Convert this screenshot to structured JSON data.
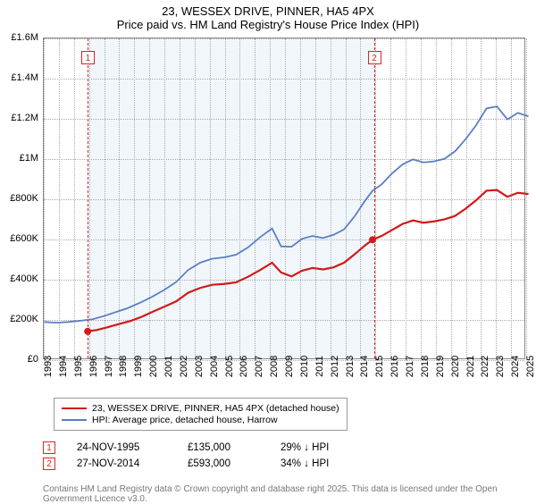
{
  "title_main": "23, WESSEX DRIVE, PINNER, HA5 4PX",
  "title_sub": "Price paid vs. HM Land Registry's House Price Index (HPI)",
  "title_fontsize": 13,
  "background_color": "#ffffff",
  "grid_color": "#aaaaaa",
  "border_color": "#888888",
  "shade_color": "rgba(200,220,240,0.25)",
  "marker_color": "#e02222",
  "xaxis": {
    "min_year": 1993,
    "max_year": 2025,
    "ticks": [
      1993,
      1994,
      1995,
      1996,
      1997,
      1998,
      1999,
      2000,
      2001,
      2002,
      2003,
      2004,
      2005,
      2006,
      2007,
      2008,
      2009,
      2010,
      2011,
      2012,
      2013,
      2014,
      2015,
      2016,
      2017,
      2018,
      2019,
      2020,
      2021,
      2022,
      2023,
      2024,
      2025
    ],
    "rotation_deg": -90,
    "fontsize": 11
  },
  "yaxis": {
    "min": 0,
    "max": 1600000,
    "step": 200000,
    "ticks": [
      0,
      200000,
      400000,
      600000,
      800000,
      1000000,
      1200000,
      1400000,
      1600000
    ],
    "tick_labels": [
      "£0",
      "£200K",
      "£400K",
      "£600K",
      "£800K",
      "£1M",
      "£1.2M",
      "£1.4M",
      "£1.6M"
    ],
    "fontsize": 11
  },
  "shaded_range": {
    "from": 1995.9,
    "to": 2014.9
  },
  "sale_markers": [
    {
      "id": "1",
      "year": 1995.9,
      "y": 135000,
      "box_yoffset": 14
    },
    {
      "id": "2",
      "year": 2014.9,
      "y": 593000,
      "box_yoffset": 14
    }
  ],
  "legend": {
    "items": [
      {
        "color": "#d11919",
        "width": 2.5,
        "label": "23, WESSEX DRIVE, PINNER, HA5 4PX (detached house)"
      },
      {
        "color": "#5a7fc4",
        "width": 2,
        "label": "HPI: Average price, detached house, Harrow"
      }
    ]
  },
  "events": [
    {
      "id": "1",
      "date": "24-NOV-1995",
      "price": "£135,000",
      "delta": "29% ↓ HPI"
    },
    {
      "id": "2",
      "date": "27-NOV-2014",
      "price": "£593,000",
      "delta": "34% ↓ HPI"
    }
  ],
  "credit": "Contains HM Land Registry data © Crown copyright and database right 2025. This data is licensed under the Open Government Licence v3.0.",
  "series": {
    "property": {
      "color": "#d11919",
      "line_width": 2.2,
      "points": [
        [
          1995.9,
          135000
        ],
        [
          1996.5,
          142000
        ],
        [
          1997.2,
          155000
        ],
        [
          1998.0,
          172000
        ],
        [
          1998.8,
          188000
        ],
        [
          1999.5,
          208000
        ],
        [
          2000.3,
          235000
        ],
        [
          2001.0,
          258000
        ],
        [
          2001.8,
          285000
        ],
        [
          2002.6,
          328000
        ],
        [
          2003.4,
          352000
        ],
        [
          2004.2,
          368000
        ],
        [
          2005.0,
          372000
        ],
        [
          2005.8,
          380000
        ],
        [
          2006.6,
          408000
        ],
        [
          2007.4,
          442000
        ],
        [
          2008.2,
          478000
        ],
        [
          2008.8,
          430000
        ],
        [
          2009.5,
          410000
        ],
        [
          2010.2,
          438000
        ],
        [
          2010.9,
          452000
        ],
        [
          2011.6,
          445000
        ],
        [
          2012.3,
          455000
        ],
        [
          2013.0,
          478000
        ],
        [
          2013.7,
          520000
        ],
        [
          2014.4,
          565000
        ],
        [
          2014.9,
          593000
        ],
        [
          2015.5,
          612000
        ],
        [
          2016.2,
          642000
        ],
        [
          2016.9,
          672000
        ],
        [
          2017.6,
          690000
        ],
        [
          2018.3,
          678000
        ],
        [
          2019.0,
          685000
        ],
        [
          2019.7,
          695000
        ],
        [
          2020.4,
          712000
        ],
        [
          2021.1,
          748000
        ],
        [
          2021.8,
          790000
        ],
        [
          2022.5,
          838000
        ],
        [
          2023.2,
          842000
        ],
        [
          2023.9,
          808000
        ],
        [
          2024.6,
          828000
        ],
        [
          2025.3,
          822000
        ]
      ]
    },
    "hpi": {
      "color": "#5a7fc4",
      "line_width": 1.8,
      "points": [
        [
          1993.0,
          182000
        ],
        [
          1993.8,
          178000
        ],
        [
          1994.6,
          182000
        ],
        [
          1995.4,
          188000
        ],
        [
          1996.2,
          195000
        ],
        [
          1997.0,
          212000
        ],
        [
          1997.8,
          232000
        ],
        [
          1998.6,
          252000
        ],
        [
          1999.4,
          278000
        ],
        [
          2000.2,
          308000
        ],
        [
          2001.0,
          342000
        ],
        [
          2001.8,
          382000
        ],
        [
          2002.6,
          442000
        ],
        [
          2003.4,
          478000
        ],
        [
          2004.2,
          498000
        ],
        [
          2005.0,
          505000
        ],
        [
          2005.8,
          518000
        ],
        [
          2006.6,
          555000
        ],
        [
          2007.4,
          606000
        ],
        [
          2008.2,
          650000
        ],
        [
          2008.8,
          560000
        ],
        [
          2009.5,
          558000
        ],
        [
          2010.2,
          598000
        ],
        [
          2010.9,
          612000
        ],
        [
          2011.6,
          602000
        ],
        [
          2012.3,
          618000
        ],
        [
          2013.0,
          645000
        ],
        [
          2013.7,
          710000
        ],
        [
          2014.4,
          788000
        ],
        [
          2014.9,
          838000
        ],
        [
          2015.5,
          870000
        ],
        [
          2016.2,
          925000
        ],
        [
          2016.9,
          970000
        ],
        [
          2017.6,
          995000
        ],
        [
          2018.3,
          980000
        ],
        [
          2019.0,
          985000
        ],
        [
          2019.7,
          998000
        ],
        [
          2020.4,
          1035000
        ],
        [
          2021.1,
          1095000
        ],
        [
          2021.8,
          1165000
        ],
        [
          2022.5,
          1250000
        ],
        [
          2023.2,
          1260000
        ],
        [
          2023.9,
          1195000
        ],
        [
          2024.6,
          1228000
        ],
        [
          2025.3,
          1210000
        ]
      ]
    }
  }
}
